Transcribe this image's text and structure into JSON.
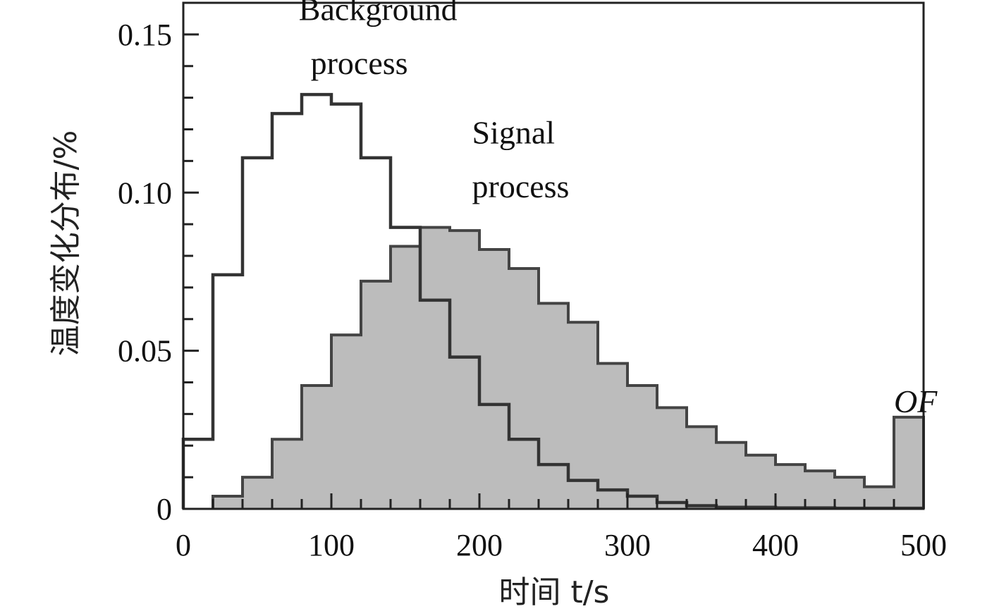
{
  "chart_data": {
    "type": "histogram",
    "xlabel": "时间 t/s",
    "ylabel": "温度变化分布/%",
    "xlim": [
      0,
      500
    ],
    "ylim": [
      0,
      0.16
    ],
    "bin_width": 20,
    "x_ticks": [
      "0",
      "100",
      "200",
      "300",
      "400",
      "500"
    ],
    "y_ticks": [
      "0",
      "0.05",
      "0.10",
      "0.15"
    ],
    "grid": false,
    "series": [
      {
        "name": "Background process",
        "style": "outline",
        "color": "#333333",
        "bin_starts": [
          0,
          20,
          40,
          60,
          80,
          100,
          120,
          140,
          160,
          180,
          200,
          220,
          240,
          260,
          280,
          300,
          320,
          340,
          360,
          380,
          400,
          420,
          440,
          460,
          480
        ],
        "values": [
          0.022,
          0.074,
          0.111,
          0.125,
          0.131,
          0.128,
          0.111,
          0.089,
          0.066,
          0.048,
          0.033,
          0.022,
          0.014,
          0.009,
          0.006,
          0.004,
          0.002,
          0.001,
          0.0005,
          0.0005,
          0.0003,
          0.0003,
          0.0002,
          0.0002,
          0.0002
        ]
      },
      {
        "name": "Signal process",
        "style": "filled",
        "color": "#bcbcbc",
        "edge": "#444444",
        "bin_starts": [
          20,
          40,
          60,
          80,
          100,
          120,
          140,
          160,
          180,
          200,
          220,
          240,
          260,
          280,
          300,
          320,
          340,
          360,
          380,
          400,
          420,
          440,
          460,
          480
        ],
        "values": [
          0.004,
          0.01,
          0.022,
          0.039,
          0.055,
          0.072,
          0.083,
          0.089,
          0.088,
          0.082,
          0.076,
          0.065,
          0.059,
          0.046,
          0.039,
          0.032,
          0.026,
          0.021,
          0.017,
          0.014,
          0.012,
          0.01,
          0.007,
          0.029
        ]
      }
    ],
    "annotations": [
      {
        "text": "Background",
        "x": 78,
        "y": 0.1545
      },
      {
        "text": "process",
        "x": 86,
        "y": 0.1375
      },
      {
        "text": "Signal",
        "x": 195,
        "y": 0.1155
      },
      {
        "text": "process",
        "x": 195,
        "y": 0.0985
      },
      {
        "text": "OF",
        "x": 480,
        "y": 0.0305
      }
    ]
  }
}
